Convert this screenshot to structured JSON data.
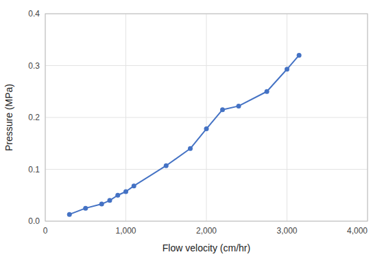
{
  "chart_data": {
    "type": "line",
    "x_label": "Flow velocity (cm/hr)",
    "y_label": "Pressure (MPa)",
    "x": [
      300,
      500,
      700,
      800,
      900,
      1000,
      1100,
      1500,
      1800,
      2000,
      2200,
      2400,
      2750,
      3000,
      3150
    ],
    "values": [
      0.013,
      0.025,
      0.033,
      0.04,
      0.05,
      0.057,
      0.068,
      0.107,
      0.14,
      0.178,
      0.215,
      0.222,
      0.25,
      0.293,
      0.32
    ],
    "color": "#4472C4",
    "marker": "circle",
    "xlim": [
      0,
      4000
    ],
    "ylim": [
      0.0,
      0.4
    ],
    "xticks": [
      0,
      {
        "value": 1000,
        "label": "1,000"
      },
      {
        "value": 2000,
        "label": "2,000"
      },
      {
        "value": 3000,
        "label": "3,000"
      },
      {
        "value": 4000,
        "label": "4,000"
      }
    ],
    "yticks": [
      {
        "value": 0.0,
        "label": "0.0"
      },
      0.1,
      0.2,
      0.3,
      0.4
    ],
    "grid": true
  }
}
